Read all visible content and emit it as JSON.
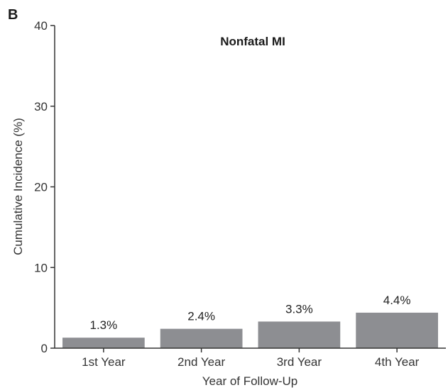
{
  "panel_label": "B",
  "colors": {
    "bar": "#8d8e92",
    "axis": "#333333",
    "text": "#333333"
  },
  "chart_data": {
    "type": "bar",
    "title": "Nonfatal MI",
    "xlabel": "Year of Follow-Up",
    "ylabel": "Cumulative Incidence (%)",
    "categories": [
      "1st Year",
      "2nd Year",
      "3rd Year",
      "4th Year"
    ],
    "values": [
      1.3,
      2.4,
      3.3,
      4.4
    ],
    "data_labels": [
      "1.3%",
      "2.4%",
      "3.3%",
      "4.4%"
    ],
    "ylim": [
      0,
      40
    ],
    "yticks": [
      0,
      10,
      20,
      30,
      40
    ],
    "grid": false,
    "legend": "none"
  }
}
